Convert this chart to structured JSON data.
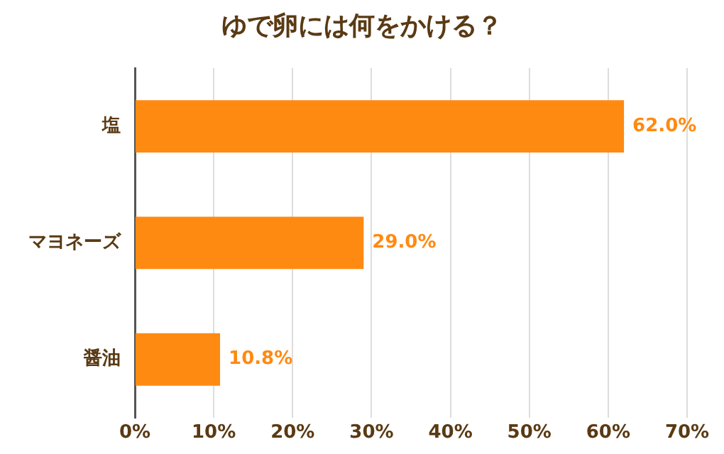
{
  "chart_data": {
    "type": "bar",
    "orientation": "horizontal",
    "title": "ゆで卵には何をかける？",
    "categories": [
      "塩",
      "マヨネーズ",
      "醤油"
    ],
    "values": [
      62.0,
      29.0,
      10.8
    ],
    "value_labels": [
      "62.0%",
      "29.0%",
      "10.8%"
    ],
    "color": "#ff8a12",
    "xlim": [
      0,
      70
    ],
    "xticks": [
      {
        "value": 0,
        "label": "0%"
      },
      {
        "value": 10,
        "label": "10%"
      },
      {
        "value": 20,
        "label": "20%"
      },
      {
        "value": 30,
        "label": "30%"
      },
      {
        "value": 40,
        "label": "40%"
      },
      {
        "value": 50,
        "label": "50%"
      },
      {
        "value": 60,
        "label": "60%"
      },
      {
        "value": 70,
        "label": "70%"
      }
    ],
    "grid": "x",
    "legend": false
  }
}
